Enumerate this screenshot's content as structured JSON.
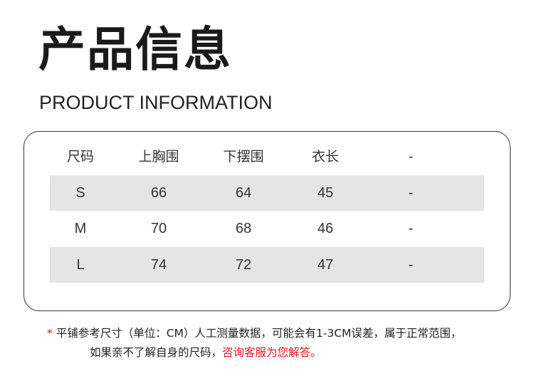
{
  "title": "产品信息",
  "subtitle": "PRODUCT INFORMATION",
  "table": {
    "headers": [
      "尺码",
      "上胸围",
      "下摆围",
      "衣长",
      "-"
    ],
    "rows": [
      [
        "S",
        "66",
        "64",
        "45",
        "-"
      ],
      [
        "M",
        "70",
        "68",
        "46",
        "-"
      ],
      [
        "L",
        "74",
        "72",
        "47",
        "-"
      ]
    ]
  },
  "note": {
    "star": "*",
    "line1": "平铺参考尺寸（单位：CM）人工测量数据，可能会有1-3CM误差，属于正常范围，",
    "line2_black": "如果亲不了解自身的尺码，",
    "line2_red": "咨询客服为您解答。"
  },
  "colors": {
    "accent_red": "#e8121b",
    "row_grey": "#e5e5e5"
  }
}
